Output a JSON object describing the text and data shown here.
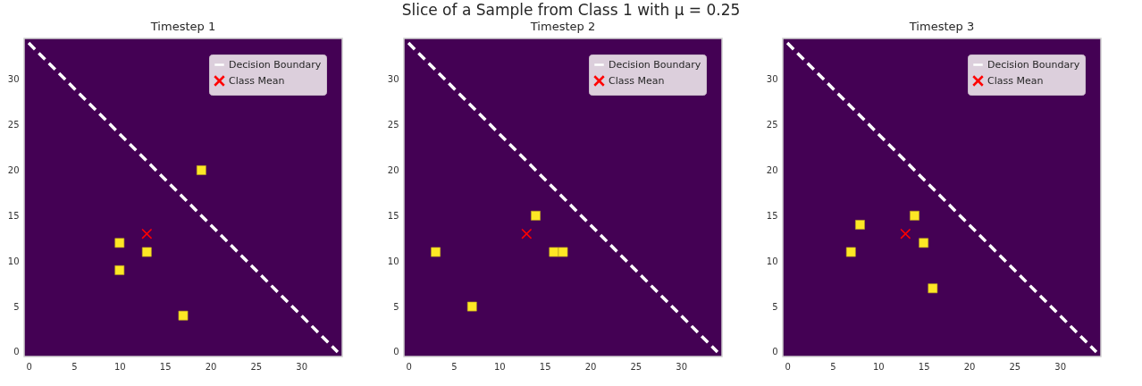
{
  "chart_data": [
    {
      "type": "scatter",
      "title": "Timestep 1",
      "annotations": [
        "Slice of a Sample from Class 1 with μ = 0.25"
      ],
      "xlim": [
        -0.5,
        34.5
      ],
      "ylim": [
        -0.5,
        34.5
      ],
      "xticks": [
        0,
        5,
        10,
        15,
        20,
        25,
        30
      ],
      "yticks": [
        0,
        5,
        10,
        15,
        20,
        25,
        30
      ],
      "legend": "top right",
      "series": [
        {
          "color": "#fde725",
          "marker": "square",
          "x": [
            19,
            10,
            13,
            10,
            17
          ],
          "values": [
            20,
            12,
            11,
            9,
            4
          ]
        },
        {
          "name": "Decision Boundary",
          "type": "line",
          "color": "#ffffff",
          "line_style": "dashed",
          "marker": "none",
          "x": [
            0,
            34
          ],
          "values": [
            34,
            0
          ]
        },
        {
          "name": "Class Mean",
          "color": "#ff0000",
          "marker": "cross",
          "x": [
            13
          ],
          "values": [
            13
          ]
        }
      ]
    },
    {
      "type": "scatter",
      "title": "Timestep 2",
      "xlim": [
        -0.5,
        34.5
      ],
      "ylim": [
        -0.5,
        34.5
      ],
      "xticks": [
        0,
        5,
        10,
        15,
        20,
        25,
        30
      ],
      "yticks": [
        0,
        5,
        10,
        15,
        20,
        25,
        30
      ],
      "legend": "top right",
      "series": [
        {
          "color": "#fde725",
          "marker": "square",
          "x": [
            14,
            3,
            16,
            17,
            7
          ],
          "values": [
            15,
            11,
            11,
            11,
            5
          ]
        },
        {
          "name": "Decision Boundary",
          "type": "line",
          "color": "#ffffff",
          "line_style": "dashed",
          "marker": "none",
          "x": [
            0,
            34
          ],
          "values": [
            34,
            0
          ]
        },
        {
          "name": "Class Mean",
          "color": "#ff0000",
          "marker": "cross",
          "x": [
            13
          ],
          "values": [
            13
          ]
        }
      ]
    },
    {
      "type": "scatter",
      "title": "Timestep 3",
      "xlim": [
        -0.5,
        34.5
      ],
      "ylim": [
        -0.5,
        34.5
      ],
      "xticks": [
        0,
        5,
        10,
        15,
        20,
        25,
        30
      ],
      "yticks": [
        0,
        5,
        10,
        15,
        20,
        25,
        30
      ],
      "legend": "top right",
      "series": [
        {
          "color": "#fde725",
          "marker": "square",
          "x": [
            14,
            8,
            15,
            7,
            16
          ],
          "values": [
            15,
            14,
            12,
            11,
            7
          ]
        },
        {
          "name": "Decision Boundary",
          "type": "line",
          "color": "#ffffff",
          "line_style": "dashed",
          "marker": "none",
          "x": [
            0,
            34
          ],
          "values": [
            34,
            0
          ]
        },
        {
          "name": "Class Mean",
          "color": "#ff0000",
          "marker": "cross",
          "x": [
            13
          ],
          "values": [
            13
          ]
        }
      ]
    }
  ]
}
